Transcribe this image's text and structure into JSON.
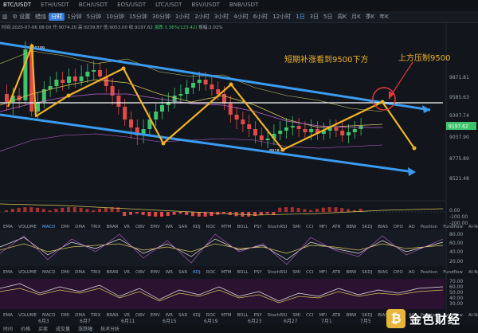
{
  "symbols": [
    "BTC/USDT",
    "ETH/USDT",
    "BCH/USDT",
    "EOS/USDT",
    "LTC/USDT",
    "BSV/USDT",
    "BNB/USDT"
  ],
  "active_symbol_index": 0,
  "toolbar": {
    "settings": "设置",
    "candle": "蜡烛",
    "timeshare": "分时",
    "intervals": [
      "1分钟",
      "5分钟",
      "10分钟",
      "15分钟",
      "30分钟",
      "1小时",
      "2小时",
      "3小时",
      "4小时",
      "6小时",
      "12小时",
      "1日",
      "3日",
      "5日",
      "周K",
      "月K",
      "季K",
      "年K"
    ],
    "active_interval": "1日"
  },
  "ohlc": {
    "time": "时间:2020-07-06 08:00",
    "open": "开:9074.20",
    "high": "高:9239.87",
    "low": "低:9053.00",
    "close": "收:9197.62",
    "change": "涨跌:1.36%(123.42)",
    "amplitude": "振幅:2.02%"
  },
  "price_axis": [
    "9871.81",
    "9585.63",
    "9307.74",
    "9197.62",
    "9037.90",
    "8775.89",
    "8521.48"
  ],
  "current_price": "9197.62",
  "price_markers": {
    "high": "10299",
    "low": "8918"
  },
  "annotations": {
    "text1": "短期补涨看到9500下方",
    "text2": "上方压制9500"
  },
  "macd_axis": [
    "0.00",
    "-100.00",
    "-200.00"
  ],
  "kdj_axis": [
    "80.00",
    "60.00",
    "40.00",
    "20.00"
  ],
  "rsi_axis": [
    "70.00",
    "60.00",
    "50.00",
    "40.00",
    "30.00"
  ],
  "indicator_tabs": [
    "EMA",
    "VOLUME",
    "MACD",
    "DMI",
    "DMA",
    "TRIX",
    "BRAR",
    "VR",
    "OBV",
    "EMV",
    "WR",
    "SAR",
    "KDJ",
    "ROC",
    "MTM",
    "BOLL",
    "PSY",
    "StochRSI",
    "SMI",
    "CCI",
    "MFI",
    "ATR",
    "BBW",
    "SKDJ",
    "BIAS",
    "DPO",
    "AO",
    "Position",
    "Fundflow",
    "AI-NetVOL"
  ],
  "dates": [
    "6月3",
    "6月7",
    "6月11",
    "6月15",
    "6月19",
    "6月23",
    "6月27",
    "7月1",
    "7月5"
  ],
  "footer": [
    "时间",
    "价格",
    "买卖",
    "成交量",
    "涨跌幅",
    "技术分析"
  ],
  "watermark": "金色财经",
  "colors": {
    "up": "#3ec46d",
    "down": "#e24a4a",
    "channel": "#3a9bf0",
    "arrow": "#f0b324",
    "resistance": "#ffffff",
    "circle": "#e23a3a"
  }
}
